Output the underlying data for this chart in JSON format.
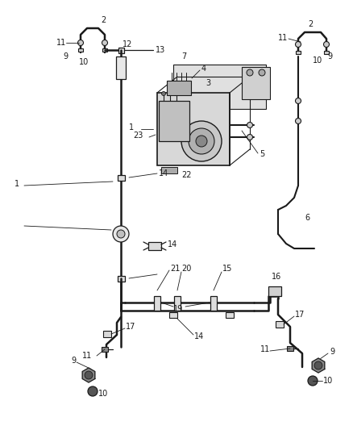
{
  "bg_color": "#ffffff",
  "line_color": "#1a1a1a",
  "text_color": "#1a1a1a",
  "fig_width": 4.38,
  "fig_height": 5.33,
  "dpi": 100
}
